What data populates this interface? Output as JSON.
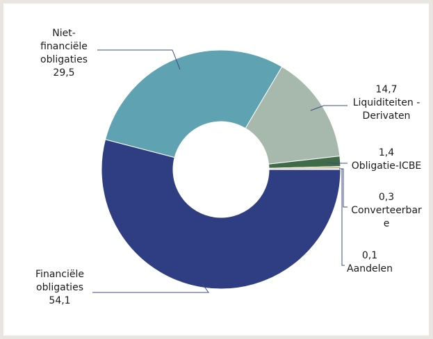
{
  "chart_data": {
    "type": "pie",
    "variant": "donut",
    "title": "",
    "slices": [
      {
        "label_lines": [
          "Financiële",
          "obligaties"
        ],
        "value": 54.1,
        "value_label": "54,1",
        "color": "#2f3d82"
      },
      {
        "label_lines": [
          "Niet-",
          "financiële",
          "obligaties"
        ],
        "value": 29.5,
        "value_label": "29,5",
        "color": "#5fa3b2"
      },
      {
        "label_lines": [
          "Liquiditeiten -",
          "Derivaten"
        ],
        "value": 14.7,
        "value_label": "14,7",
        "color": "#a6b9ac"
      },
      {
        "label_lines": [
          "Obligatie-ICBE"
        ],
        "value": 1.4,
        "value_label": "1,4",
        "color": "#3f6b49"
      },
      {
        "label_lines": [
          "Converteerbar",
          "e"
        ],
        "value": 0.3,
        "value_label": "0,3",
        "color": "#c9b990"
      },
      {
        "label_lines": [
          "Aandelen"
        ],
        "value": 0.1,
        "value_label": "0,1",
        "color": "#7a5a8f"
      }
    ]
  }
}
